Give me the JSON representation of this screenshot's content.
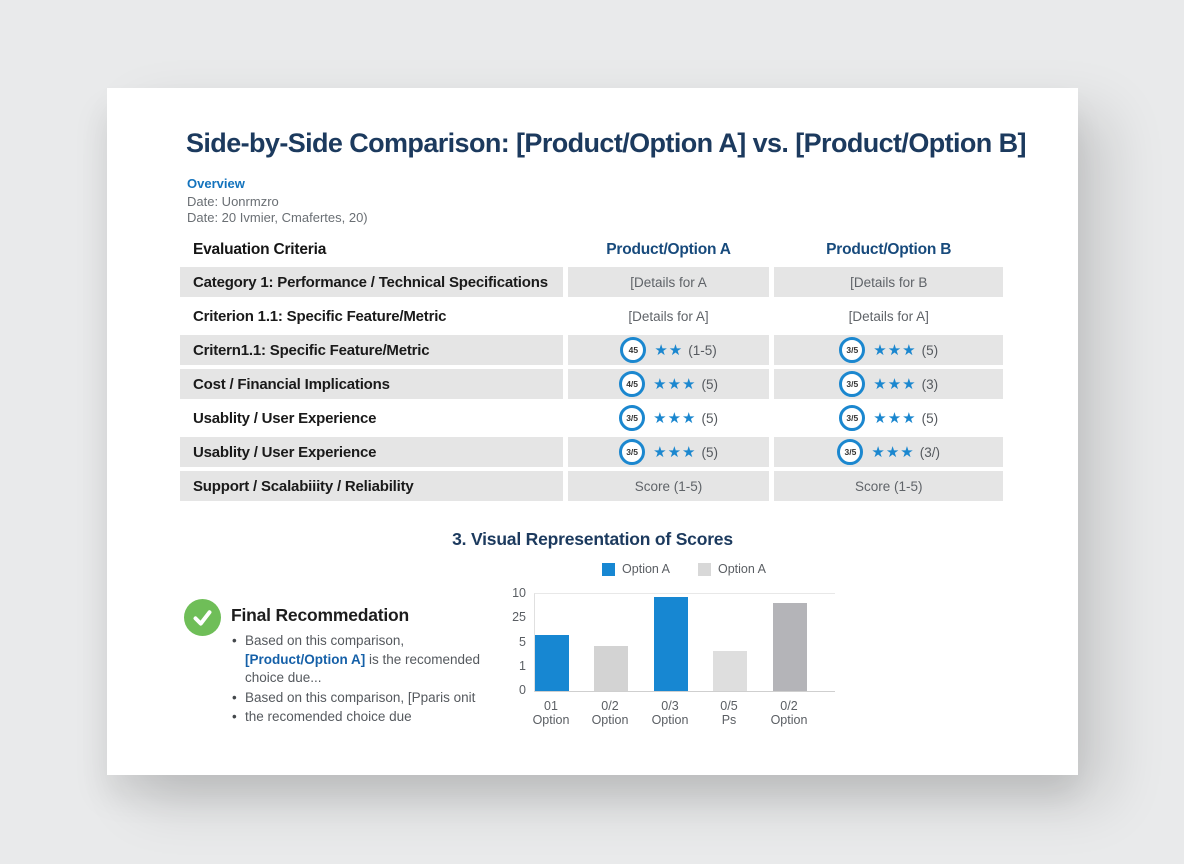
{
  "title": "Side-by-Side Comparison: [Product/Option A] vs. [Product/Option B]",
  "overview": {
    "heading": "Overview",
    "line1": "Date: Uonrmzro",
    "line2": "Date: 20 Ivmier, Cmafertes, 20)"
  },
  "table": {
    "headers": [
      "Evaluation Criteria",
      "Product/Option A",
      "Product/Option B"
    ],
    "rows": [
      {
        "label": "Category 1: Performance / Technical Specifications",
        "shaded": true,
        "a": {
          "type": "text",
          "text": "[Details for A"
        },
        "b": {
          "type": "text",
          "text": "[Details for B"
        }
      },
      {
        "label": "Criterion 1.1: Specific Feature/Metric",
        "shaded": false,
        "a": {
          "type": "text",
          "text": "[Details for A]"
        },
        "b": {
          "type": "text",
          "text": "[Details for A]"
        }
      },
      {
        "label": "Critern1.1: Specific Feature/Metric",
        "shaded": true,
        "a": {
          "type": "score",
          "badge": "45",
          "stars": 2,
          "score": "(1-5)"
        },
        "b": {
          "type": "score",
          "badge": "3/5",
          "stars": 3,
          "score": "(5)"
        }
      },
      {
        "label": "Cost / Financial Implications",
        "shaded": true,
        "a": {
          "type": "score",
          "badge": "4/5",
          "stars": 3,
          "score": "(5)"
        },
        "b": {
          "type": "score",
          "badge": "3/5",
          "stars": 3,
          "score": "(3)"
        }
      },
      {
        "label": "Usablity / User Experience",
        "shaded": false,
        "a": {
          "type": "score",
          "badge": "3/5",
          "stars": 3,
          "score": "(5)"
        },
        "b": {
          "type": "score",
          "badge": "3/5",
          "stars": 3,
          "score": "(5)"
        }
      },
      {
        "label": "Usablity / User Experience",
        "shaded": true,
        "a": {
          "type": "score",
          "badge": "3/5",
          "stars": 3,
          "score": "(5)"
        },
        "b": {
          "type": "score",
          "badge": "3/5",
          "stars": 3,
          "score": "(3/)"
        }
      },
      {
        "label": "Support / Scalabiiity / Reliability",
        "shaded": true,
        "a": {
          "type": "text",
          "text": "Score (1-5)"
        },
        "b": {
          "type": "text",
          "text": "Score (1-5)"
        }
      }
    ]
  },
  "chart_data": {
    "type": "bar",
    "title": "3. Visual Representation of Scores",
    "legend": [
      {
        "label": "Option A",
        "color": "#1787d2"
      },
      {
        "label": "Option A",
        "color": "#d8d8d8"
      }
    ],
    "categories": [
      [
        "01",
        "Option"
      ],
      [
        "0/2",
        "Option"
      ],
      [
        "0/3",
        "Option"
      ],
      [
        "0/5",
        "Ps"
      ],
      [
        "0/2",
        "Option"
      ]
    ],
    "values": [
      5.8,
      4.6,
      9.7,
      4.1,
      9.1
    ],
    "bar_colors": [
      "#1787d2",
      "#d3d3d3",
      "#1787d2",
      "#dedede",
      "#b4b4b8"
    ],
    "ytick_labels": [
      "10",
      "25",
      "5",
      "1",
      "0"
    ],
    "ylim": [
      0,
      10
    ],
    "grid": false,
    "legend_position": "top",
    "xlabel": "",
    "ylabel": ""
  },
  "recommendation": {
    "heading": "Final Recommedation",
    "check_color": "#6fbe58",
    "bullets": [
      {
        "parts": [
          {
            "text": "Based on this comparison, ",
            "highlight": false
          },
          {
            "text": "[Product/Option A]",
            "highlight": true
          },
          {
            "text": " is the recomended choice due...",
            "highlight": false
          }
        ]
      },
      {
        "parts": [
          {
            "text": "Based on this comparison, [Pparis onit",
            "highlight": false
          }
        ]
      },
      {
        "parts": [
          {
            "text": "the recomended choice due",
            "highlight": false
          }
        ]
      }
    ]
  },
  "colors": {
    "page_bg": "#e9eaeb",
    "card_bg": "#ffffff",
    "title_navy": "#1c3a5e",
    "header_navy": "#174a7c",
    "accent_blue": "#1b87cf",
    "overview_blue": "#1373bd",
    "row_shade": "#e5e5e5",
    "check_green": "#6fbe58"
  }
}
